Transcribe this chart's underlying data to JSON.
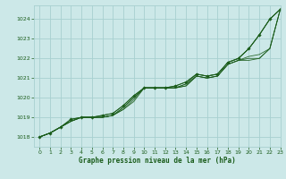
{
  "title": "Graphe pression niveau de la mer (hPa)",
  "bg_color": "#cce8e8",
  "grid_color": "#a8d0d0",
  "line_color": "#1a5c1a",
  "xlim": [
    -0.5,
    23
  ],
  "ylim": [
    1017.5,
    1024.7
  ],
  "yticks": [
    1018,
    1019,
    1020,
    1021,
    1022,
    1023,
    1024
  ],
  "xticks": [
    0,
    1,
    2,
    3,
    4,
    5,
    6,
    7,
    8,
    9,
    10,
    11,
    12,
    13,
    14,
    15,
    16,
    17,
    18,
    19,
    20,
    21,
    22,
    23
  ],
  "series": [
    [
      1018.0,
      1018.2,
      1018.5,
      1018.8,
      1019.0,
      1019.0,
      1019.0,
      1019.1,
      1019.4,
      1019.8,
      1020.5,
      1020.5,
      1020.5,
      1020.5,
      1020.6,
      1021.1,
      1021.0,
      1021.1,
      1021.7,
      1021.9,
      1021.9,
      1022.0,
      1022.5,
      1024.5
    ],
    [
      1018.0,
      1018.2,
      1018.5,
      1018.8,
      1019.0,
      1019.0,
      1019.0,
      1019.1,
      1019.4,
      1019.9,
      1020.5,
      1020.5,
      1020.5,
      1020.5,
      1020.6,
      1021.1,
      1021.0,
      1021.1,
      1021.7,
      1021.9,
      1022.0,
      1022.0,
      1022.5,
      1024.5
    ],
    [
      1018.0,
      1018.2,
      1018.5,
      1018.8,
      1019.0,
      1019.0,
      1019.0,
      1019.1,
      1019.5,
      1020.0,
      1020.5,
      1020.5,
      1020.5,
      1020.5,
      1020.7,
      1021.1,
      1021.0,
      1021.1,
      1021.7,
      1021.9,
      1022.1,
      1022.2,
      1022.5,
      1024.5
    ],
    [
      1018.0,
      1018.2,
      1018.5,
      1018.8,
      1019.0,
      1019.0,
      1019.0,
      1019.1,
      1019.5,
      1020.0,
      1020.5,
      1020.5,
      1020.5,
      1020.5,
      1020.7,
      1021.2,
      1021.1,
      1021.2,
      1021.8,
      1022.0,
      1022.5,
      1023.2,
      1024.0,
      1024.5
    ],
    [
      1018.0,
      1018.2,
      1018.5,
      1018.9,
      1019.0,
      1019.0,
      1019.1,
      1019.2,
      1019.6,
      1020.1,
      1020.5,
      1020.5,
      1020.5,
      1020.6,
      1020.8,
      1021.2,
      1021.1,
      1021.2,
      1021.8,
      1022.0,
      1022.5,
      1023.2,
      1024.0,
      1024.5
    ]
  ],
  "marker_series": [
    {
      "x": [
        0,
        1,
        2,
        3,
        4,
        5,
        6,
        7,
        8,
        9,
        10,
        11,
        12,
        13,
        14,
        15,
        16,
        17,
        18,
        19,
        20,
        21,
        22,
        23
      ],
      "y": [
        1018.0,
        1018.2,
        1018.5,
        1018.9,
        1019.0,
        1019.0,
        1019.1,
        1019.2,
        1019.6,
        1020.1,
        1020.5,
        1020.5,
        1020.5,
        1020.6,
        1020.8,
        1021.2,
        1021.1,
        1021.2,
        1021.8,
        1022.0,
        1022.5,
        1023.2,
        1024.0,
        1024.5
      ]
    }
  ]
}
